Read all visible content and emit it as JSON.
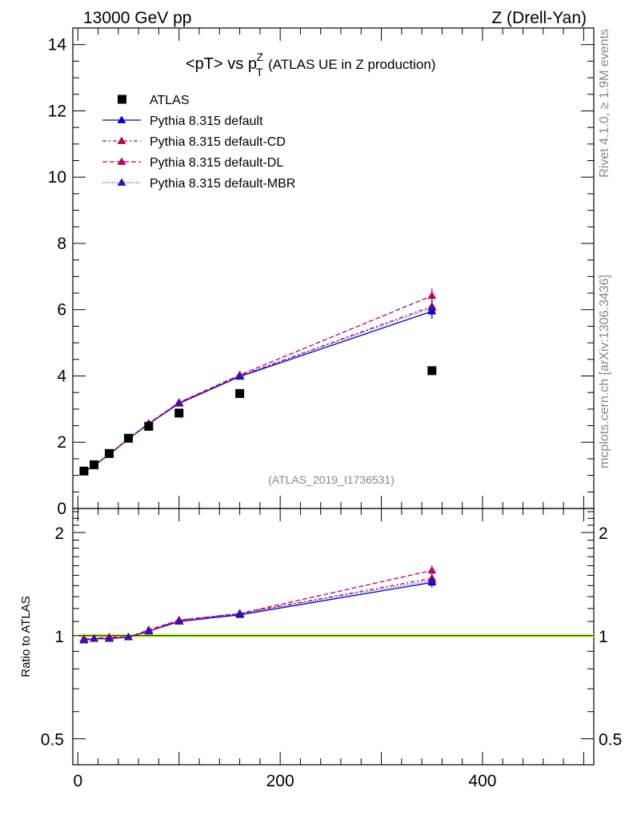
{
  "header": {
    "left": "13000 GeV pp",
    "right": "Z (Drell-Yan)"
  },
  "side_labels": {
    "rivet": "Rivet 4.1.0, ≥ 1.9M events",
    "mcplots": "mcplots.cern.ch [arXiv:1306.3436]"
  },
  "chart_data": {
    "type": "line",
    "title_main": "<pT> vs p",
    "title_sup": "Z",
    "title_sub": "T",
    "title_rest": "(ATLAS UE in Z production)",
    "analysis_id": "(ATLAS_2019_I1736531)",
    "ratio_ylabel": "Ratio to ATLAS",
    "xlim": [
      -5,
      510
    ],
    "ylim": [
      0,
      14.5
    ],
    "ratio_ylim": [
      0.42,
      2.35
    ],
    "x_ticks": [
      0,
      200,
      400
    ],
    "x_tick_labels": [
      "0",
      "200",
      "400"
    ],
    "y_ticks": [
      0,
      2,
      4,
      6,
      8,
      10,
      12,
      14
    ],
    "y_tick_labels": [
      "0",
      "2",
      "4",
      "6",
      "8",
      "10",
      "12",
      "14"
    ],
    "ratio_ticks": [
      0.5,
      1,
      2
    ],
    "ratio_tick_labels": [
      "0.5",
      "1",
      "2"
    ],
    "x": [
      6,
      16,
      31,
      50,
      70,
      100,
      160,
      350
    ],
    "data": {
      "name": "ATLAS",
      "values": [
        1.13,
        1.32,
        1.66,
        2.12,
        2.48,
        2.88,
        3.47,
        4.16
      ],
      "color": "#000000"
    },
    "series": [
      {
        "name": "Pythia 8.315 default",
        "color": "#0000cc",
        "dash": "",
        "values": [
          1.1,
          1.29,
          1.63,
          2.1,
          2.55,
          3.17,
          3.98,
          5.95
        ],
        "ratio": [
          0.97,
          0.98,
          0.98,
          0.99,
          1.03,
          1.1,
          1.15,
          1.43
        ]
      },
      {
        "name": "Pythia 8.315 default-CD",
        "color": "#aa1144",
        "dash": "5,3,2,3",
        "values": [
          1.1,
          1.29,
          1.64,
          2.1,
          2.56,
          3.19,
          4.0,
          6.1
        ],
        "ratio": [
          0.97,
          0.98,
          0.98,
          0.99,
          1.03,
          1.11,
          1.16,
          1.47
        ]
      },
      {
        "name": "Pythia 8.315 default-DL",
        "color": "#bb0066",
        "dash": "6,3",
        "values": [
          1.11,
          1.3,
          1.64,
          2.11,
          2.57,
          3.2,
          4.03,
          6.42
        ],
        "ratio": [
          0.98,
          0.98,
          0.99,
          0.99,
          1.04,
          1.11,
          1.16,
          1.55
        ]
      },
      {
        "name": "Pythia 8.315 default-MBR",
        "color": "#3311aa",
        "dash": "1,2",
        "values": [
          1.1,
          1.29,
          1.63,
          2.1,
          2.56,
          3.18,
          4.0,
          6.05
        ],
        "ratio": [
          0.97,
          0.98,
          0.98,
          0.99,
          1.03,
          1.1,
          1.16,
          1.45
        ]
      }
    ]
  }
}
